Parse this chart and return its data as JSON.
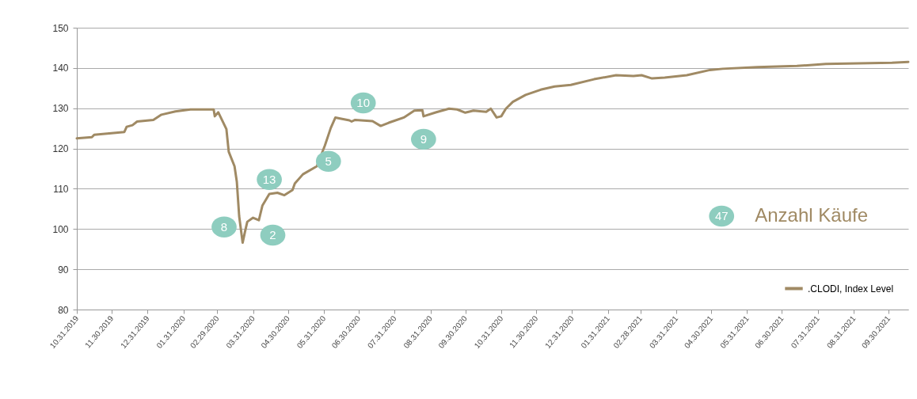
{
  "chart_data": {
    "type": "line",
    "x": [
      "2019-10-31",
      "2019-11-13",
      "2019-11-15",
      "2019-12-11",
      "2019-12-13",
      "2019-12-18",
      "2019-12-22",
      "2020-01-05",
      "2020-01-12",
      "2020-01-24",
      "2020-02-06",
      "2020-02-26",
      "2020-02-27",
      "2020-03-01",
      "2020-03-08",
      "2020-03-10",
      "2020-03-15",
      "2020-03-17",
      "2020-03-19",
      "2020-03-22",
      "2020-03-24",
      "2020-03-26",
      "2020-03-31",
      "2020-04-05",
      "2020-04-08",
      "2020-04-14",
      "2020-04-21",
      "2020-04-27",
      "2020-05-04",
      "2020-05-06",
      "2020-05-13",
      "2020-05-25",
      "2020-06-01",
      "2020-06-06",
      "2020-06-10",
      "2020-06-15",
      "2020-06-22",
      "2020-06-24",
      "2020-06-27",
      "2020-07-12",
      "2020-07-19",
      "2020-07-26",
      "2020-08-08",
      "2020-08-17",
      "2020-08-24",
      "2020-08-25",
      "2020-09-05",
      "2020-09-16",
      "2020-09-23",
      "2020-09-30",
      "2020-10-07",
      "2020-10-18",
      "2020-10-22",
      "2020-10-27",
      "2020-10-31",
      "2020-11-04",
      "2020-11-10",
      "2020-11-21",
      "2020-12-04",
      "2020-12-16",
      "2020-12-30",
      "2021-01-19",
      "2021-02-07",
      "2021-02-22",
      "2021-03-01",
      "2021-03-10",
      "2021-03-21",
      "2021-04-09",
      "2021-04-29",
      "2021-05-10",
      "2021-06-09",
      "2021-07-13",
      "2021-08-07",
      "2021-10-03",
      "2021-10-17"
    ],
    "series": [
      {
        "name": ".CLODI, Index Level",
        "color": "#a08a64",
        "values": [
          122.5,
          122.8,
          123.4,
          124.1,
          125.4,
          125.8,
          126.7,
          127.1,
          128.4,
          129.2,
          129.7,
          129.7,
          128.0,
          129.0,
          124.8,
          119.2,
          115.6,
          111.7,
          103.2,
          96.6,
          99.3,
          101.8,
          102.8,
          102.2,
          105.8,
          108.7,
          109.0,
          108.4,
          109.7,
          111.3,
          113.6,
          115.6,
          120.8,
          125.1,
          127.7,
          127.4,
          127.0,
          126.7,
          127.1,
          126.8,
          125.6,
          126.4,
          127.7,
          129.4,
          129.5,
          128.0,
          129.0,
          129.9,
          129.7,
          128.9,
          129.4,
          129.1,
          129.9,
          127.7,
          128.0,
          129.9,
          131.6,
          133.3,
          134.6,
          135.4,
          135.8,
          137.2,
          138.2,
          138.0,
          138.2,
          137.4,
          137.6,
          138.2,
          139.5,
          139.8,
          140.2,
          140.5,
          141.0,
          141.3,
          141.5
        ]
      }
    ],
    "xlim": [
      "2019-10-31",
      "2021-10-17"
    ],
    "xticks": [
      {
        "value": "2019-10-31",
        "label": "10.31.2019"
      },
      {
        "value": "2019-11-30",
        "label": "11.30.2019"
      },
      {
        "value": "2019-12-31",
        "label": "12.31.2019"
      },
      {
        "value": "2020-01-31",
        "label": "01.31.2020"
      },
      {
        "value": "2020-02-29",
        "label": "02.29.2020"
      },
      {
        "value": "2020-03-31",
        "label": "03.31.2020"
      },
      {
        "value": "2020-04-30",
        "label": "04.30.2020"
      },
      {
        "value": "2020-05-31",
        "label": "05.31.2020"
      },
      {
        "value": "2020-06-30",
        "label": "06.30.2020"
      },
      {
        "value": "2020-07-31",
        "label": "07.31.2020"
      },
      {
        "value": "2020-08-31",
        "label": "08.31.2020"
      },
      {
        "value": "2020-09-30",
        "label": "09.30.2020"
      },
      {
        "value": "2020-10-31",
        "label": "10.31.2020"
      },
      {
        "value": "2020-11-30",
        "label": "11.30.2020"
      },
      {
        "value": "2020-12-31",
        "label": "12.31.2020"
      },
      {
        "value": "2021-01-31",
        "label": "01.31.2021"
      },
      {
        "value": "2021-02-28",
        "label": "02.28.2021"
      },
      {
        "value": "2021-03-31",
        "label": "03.31.2021"
      },
      {
        "value": "2021-04-30",
        "label": "04.30.2021"
      },
      {
        "value": "2021-05-31",
        "label": "05.31.2021"
      },
      {
        "value": "2021-06-30",
        "label": "06.30.2021"
      },
      {
        "value": "2021-07-31",
        "label": "07.31.2021"
      },
      {
        "value": "2021-08-31",
        "label": "08.31.2021"
      },
      {
        "value": "2021-09-30",
        "label": "09.30.2021"
      }
    ],
    "ylim": [
      80,
      150
    ],
    "yticks": [
      80,
      90,
      100,
      110,
      120,
      130,
      140,
      150
    ],
    "grid": "y",
    "legend": "bottom right",
    "annotations": [
      {
        "text": "8",
        "x": "2020-03-06",
        "y": 100.5
      },
      {
        "text": "13",
        "x": "2020-04-14",
        "y": 112.3
      },
      {
        "text": "2",
        "x": "2020-04-17",
        "y": 98.5
      },
      {
        "text": "5",
        "x": "2020-06-04",
        "y": 116.8
      },
      {
        "text": "10",
        "x": "2020-07-04",
        "y": 131.3
      },
      {
        "text": "9",
        "x": "2020-08-25",
        "y": 122.3
      },
      {
        "text": "47",
        "x": "2021-05-09",
        "y": 103.2
      },
      "Anzahl Käufe"
    ]
  }
}
